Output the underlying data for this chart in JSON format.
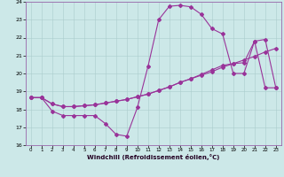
{
  "xlabel": "Windchill (Refroidissement éolien,°C)",
  "xlim": [
    -0.5,
    23.5
  ],
  "ylim": [
    16,
    24
  ],
  "xticks": [
    0,
    1,
    2,
    3,
    4,
    5,
    6,
    7,
    8,
    9,
    10,
    11,
    12,
    13,
    14,
    15,
    16,
    17,
    18,
    19,
    20,
    21,
    22,
    23
  ],
  "yticks": [
    16,
    17,
    18,
    19,
    20,
    21,
    22,
    23,
    24
  ],
  "bg_color": "#cce8e8",
  "line_color": "#993399",
  "line1_x": [
    0,
    1,
    2,
    3,
    4,
    5,
    6,
    7,
    8,
    9,
    10,
    11,
    12,
    13,
    14,
    15,
    16,
    17,
    18,
    19,
    20,
    21,
    22,
    23
  ],
  "line1_y": [
    18.65,
    18.65,
    17.9,
    17.65,
    17.65,
    17.65,
    17.65,
    17.2,
    16.6,
    16.5,
    18.1,
    20.4,
    23.0,
    23.75,
    23.8,
    23.72,
    23.3,
    22.5,
    22.2,
    20.0,
    20.0,
    21.8,
    19.2,
    19.2
  ],
  "line2_x": [
    0,
    1,
    2,
    3,
    4,
    5,
    6,
    7,
    8,
    9,
    10,
    11,
    12,
    13,
    14,
    15,
    16,
    17,
    18,
    19,
    20,
    21,
    22,
    23
  ],
  "line2_y": [
    18.65,
    18.65,
    18.3,
    18.15,
    18.15,
    18.2,
    18.25,
    18.35,
    18.45,
    18.55,
    18.7,
    18.85,
    19.05,
    19.25,
    19.5,
    19.7,
    19.9,
    20.1,
    20.35,
    20.55,
    20.75,
    20.95,
    21.2,
    21.4
  ],
  "line3_x": [
    0,
    1,
    2,
    3,
    4,
    5,
    6,
    7,
    8,
    9,
    10,
    11,
    12,
    13,
    14,
    15,
    16,
    17,
    18,
    19,
    20,
    21,
    22,
    23
  ],
  "line3_y": [
    18.65,
    18.65,
    18.3,
    18.15,
    18.15,
    18.2,
    18.25,
    18.35,
    18.45,
    18.55,
    18.7,
    18.85,
    19.05,
    19.25,
    19.5,
    19.7,
    19.95,
    20.2,
    20.45,
    20.55,
    20.6,
    21.8,
    21.9,
    19.2
  ]
}
